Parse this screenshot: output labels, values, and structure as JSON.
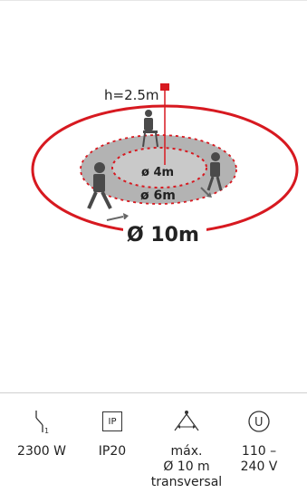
{
  "diagram": {
    "height_label": "h=2.5m",
    "inner_label": "ø 4m",
    "middle_label": "ø 6m",
    "outer_label": "Ø 10m",
    "accent_color": "#d71920",
    "floor_color": "#b3b3b3",
    "figure_color": "#4a4a4a"
  },
  "specs": [
    {
      "icon": "switch-icon",
      "glyph": "/",
      "sub": "1",
      "value": "2300 W"
    },
    {
      "icon": "ip-rating-icon",
      "glyph": "IP",
      "value": "IP20"
    },
    {
      "icon": "detection-range-icon",
      "glyph": "",
      "value": "máx.\nØ 10 m\ntransversal"
    },
    {
      "icon": "voltage-icon",
      "glyph": "U",
      "value": "110 –\n240 V"
    }
  ]
}
